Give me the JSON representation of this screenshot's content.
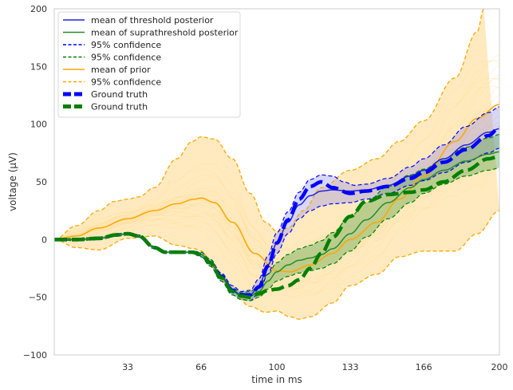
{
  "chart_data": {
    "type": "line",
    "xlabel": "time in ms",
    "ylabel": "voltage (μV)",
    "xlim": [
      0,
      200
    ],
    "ylim": [
      -100,
      200
    ],
    "xticks": [
      33,
      66,
      100,
      133,
      166,
      200
    ],
    "yticks": [
      -100,
      -50,
      0,
      50,
      100,
      150,
      200
    ],
    "grid": false,
    "legend_position": "top-left",
    "colors": {
      "threshold": "#2222dd",
      "suprathreshold": "#2a8a2a",
      "prior": "#ffa500",
      "prior_fill": "#ffd98a",
      "ground_truth_threshold": "#0000ff",
      "ground_truth_supra": "#008000"
    },
    "legend": [
      {
        "label": "mean of threshold posterior",
        "color": "#2222dd",
        "style": "solid",
        "width": 1.5
      },
      {
        "label": "mean of suprathreshold posterior",
        "color": "#2a8a2a",
        "style": "solid",
        "width": 1.5
      },
      {
        "label": "95% confidence",
        "color": "#0000ff",
        "style": "dashed",
        "width": 1.5
      },
      {
        "label": "95% confidence",
        "color": "#008000",
        "style": "dashed",
        "width": 1.5
      },
      {
        "label": "mean of prior",
        "color": "#ffa500",
        "style": "solid",
        "width": 1.5
      },
      {
        "label": "95% confidence",
        "color": "#ffa500",
        "style": "dashed",
        "width": 1.5
      },
      {
        "label": "Ground truth",
        "color": "#0000ff",
        "style": "dashed",
        "width": 5
      },
      {
        "label": "Ground truth",
        "color": "#008000",
        "style": "dashed",
        "width": 5
      }
    ],
    "series": [
      {
        "name": "mean of prior",
        "color": "#ffa500",
        "style": "solid",
        "width": 1.5,
        "x": [
          0,
          10,
          20,
          33,
          45,
          55,
          63,
          66,
          72,
          80,
          90,
          100,
          106,
          115,
          125,
          133,
          145,
          155,
          166,
          180,
          190,
          200
        ],
        "y": [
          0,
          3,
          10,
          18,
          25,
          31,
          35,
          36,
          32,
          15,
          -12,
          -27,
          -28,
          -22,
          -12,
          0,
          15,
          35,
          55,
          85,
          105,
          117
        ]
      },
      {
        "name": "prior 95% upper",
        "color": "#ffa500",
        "style": "dashed",
        "width": 1.3,
        "x": [
          0,
          10,
          20,
          27,
          33,
          38,
          45,
          55,
          62,
          66,
          72,
          80,
          88,
          95,
          100,
          105,
          112,
          120,
          133,
          145,
          155,
          166,
          180,
          190,
          193
        ],
        "y": [
          0,
          12,
          25,
          33,
          35,
          37,
          45,
          70,
          85,
          89,
          87,
          70,
          40,
          15,
          7,
          10,
          25,
          45,
          60,
          70,
          85,
          103,
          140,
          180,
          200
        ]
      },
      {
        "name": "prior 95% lower",
        "color": "#ffa500",
        "style": "dashed",
        "width": 1.3,
        "x": [
          0,
          10,
          20,
          33,
          45,
          55,
          63,
          66,
          72,
          80,
          88,
          95,
          100,
          106,
          110,
          115,
          125,
          133,
          145,
          155,
          166,
          180,
          190,
          200
        ],
        "y": [
          0,
          -7,
          -9,
          1,
          3,
          -5,
          -8,
          -10,
          -25,
          -45,
          -58,
          -63,
          -62,
          -67,
          -69,
          -67,
          -55,
          -40,
          -30,
          -15,
          -10,
          -10,
          5,
          25
        ]
      },
      {
        "name": "mean of threshold posterior",
        "color": "#2222dd",
        "style": "solid",
        "width": 1.5,
        "x": [
          0,
          10,
          20,
          28,
          33,
          38,
          45,
          50,
          55,
          62,
          66,
          70,
          75,
          80,
          84,
          88,
          92,
          96,
          100,
          105,
          110,
          115,
          120,
          125,
          133,
          140,
          150,
          160,
          166,
          175,
          185,
          195,
          200
        ],
        "y": [
          0,
          0,
          1,
          4,
          5,
          3,
          -7,
          -11,
          -11,
          -11,
          -13,
          -20,
          -32,
          -44,
          -48,
          -48,
          -40,
          -22,
          -3,
          15,
          30,
          38,
          42,
          43,
          42,
          43,
          47,
          55,
          60,
          70,
          82,
          93,
          96
        ]
      },
      {
        "name": "threshold 95% upper",
        "color": "#0000ff",
        "style": "dashed",
        "width": 1.2,
        "x": [
          0,
          10,
          20,
          28,
          33,
          38,
          45,
          50,
          55,
          62,
          66,
          70,
          75,
          80,
          84,
          88,
          92,
          96,
          100,
          105,
          110,
          115,
          120,
          125,
          130,
          135,
          140,
          150,
          160,
          166,
          175,
          185,
          195,
          200
        ],
        "y": [
          0,
          1,
          2,
          5,
          6,
          4,
          -6,
          -10,
          -10,
          -10,
          -11,
          -17,
          -29,
          -40,
          -45,
          -44,
          -34,
          -14,
          6,
          24,
          41,
          52,
          56,
          55,
          50,
          47,
          48,
          53,
          63,
          70,
          82,
          98,
          110,
          115
        ]
      },
      {
        "name": "threshold 95% lower",
        "color": "#0000ff",
        "style": "dashed",
        "width": 1.2,
        "x": [
          0,
          10,
          20,
          28,
          33,
          38,
          45,
          50,
          55,
          62,
          66,
          70,
          75,
          80,
          84,
          88,
          92,
          96,
          100,
          105,
          110,
          115,
          120,
          125,
          133,
          140,
          150,
          160,
          166,
          175,
          185,
          195,
          200
        ],
        "y": [
          0,
          -1,
          0,
          3,
          4,
          2,
          -8,
          -12,
          -12,
          -12,
          -15,
          -23,
          -36,
          -48,
          -52,
          -53,
          -46,
          -30,
          -12,
          5,
          18,
          25,
          29,
          31,
          32,
          35,
          40,
          47,
          51,
          58,
          67,
          75,
          79
        ]
      },
      {
        "name": "mean of suprathreshold posterior",
        "color": "#2a8a2a",
        "style": "solid",
        "width": 1.5,
        "x": [
          0,
          10,
          20,
          28,
          33,
          38,
          45,
          50,
          55,
          62,
          66,
          70,
          75,
          80,
          84,
          88,
          92,
          96,
          100,
          105,
          110,
          115,
          120,
          125,
          133,
          140,
          150,
          160,
          166,
          175,
          185,
          195,
          200
        ],
        "y": [
          0,
          0,
          1,
          4,
          5,
          3,
          -7,
          -11,
          -11,
          -11,
          -13,
          -20,
          -33,
          -45,
          -49,
          -49,
          -45,
          -36,
          -28,
          -22,
          -18,
          -16,
          -13,
          -8,
          5,
          17,
          32,
          45,
          52,
          60,
          68,
          74,
          76
        ]
      },
      {
        "name": "suprathreshold 95% upper",
        "color": "#008000",
        "style": "dashed",
        "width": 1.2,
        "x": [
          0,
          10,
          20,
          28,
          33,
          38,
          45,
          50,
          55,
          62,
          66,
          70,
          75,
          80,
          84,
          88,
          92,
          96,
          100,
          105,
          110,
          115,
          120,
          125,
          133,
          140,
          150,
          160,
          166,
          175,
          185,
          195,
          200
        ],
        "y": [
          0,
          1,
          2,
          5,
          6,
          4,
          -6,
          -10,
          -10,
          -10,
          -11,
          -17,
          -30,
          -42,
          -46,
          -45,
          -40,
          -30,
          -20,
          -13,
          -8,
          -5,
          -1,
          6,
          20,
          32,
          46,
          56,
          61,
          70,
          80,
          88,
          91
        ]
      },
      {
        "name": "suprathreshold 95% lower",
        "color": "#008000",
        "style": "dashed",
        "width": 1.2,
        "x": [
          0,
          10,
          20,
          28,
          33,
          38,
          45,
          50,
          55,
          62,
          66,
          70,
          75,
          80,
          84,
          88,
          92,
          96,
          100,
          105,
          110,
          115,
          120,
          125,
          133,
          140,
          150,
          160,
          166,
          175,
          185,
          195,
          200
        ],
        "y": [
          0,
          -1,
          0,
          3,
          4,
          2,
          -8,
          -12,
          -12,
          -12,
          -15,
          -23,
          -36,
          -48,
          -52,
          -53,
          -50,
          -43,
          -36,
          -32,
          -29,
          -27,
          -25,
          -21,
          -10,
          2,
          18,
          32,
          40,
          48,
          55,
          60,
          62
        ]
      },
      {
        "name": "Ground truth (threshold)",
        "color": "#0000ff",
        "style": "dashed",
        "width": 4.5,
        "x": [
          0,
          10,
          20,
          28,
          33,
          38,
          45,
          50,
          55,
          62,
          66,
          70,
          75,
          80,
          84,
          88,
          92,
          96,
          100,
          105,
          110,
          115,
          120,
          125,
          133,
          140,
          150,
          160,
          166,
          175,
          185,
          195,
          200
        ],
        "y": [
          0,
          0,
          1,
          4,
          5,
          3,
          -7,
          -11,
          -11,
          -11,
          -13,
          -20,
          -32,
          -44,
          -48,
          -48,
          -41,
          -23,
          -3,
          17,
          35,
          46,
          50,
          45,
          40,
          42,
          46,
          53,
          58,
          67,
          78,
          90,
          97
        ]
      },
      {
        "name": "Ground truth (suprathreshold)",
        "color": "#008000",
        "style": "dashed",
        "width": 4.5,
        "x": [
          0,
          10,
          20,
          28,
          33,
          38,
          45,
          50,
          55,
          62,
          66,
          70,
          75,
          80,
          84,
          88,
          92,
          96,
          100,
          105,
          110,
          115,
          120,
          125,
          133,
          140,
          150,
          160,
          166,
          175,
          185,
          195,
          200
        ],
        "y": [
          0,
          0,
          1,
          4,
          5,
          3,
          -7,
          -11,
          -11,
          -11,
          -13,
          -20,
          -33,
          -45,
          -49,
          -50,
          -47,
          -44,
          -43,
          -40,
          -35,
          -25,
          -12,
          2,
          20,
          33,
          39,
          41,
          43,
          50,
          60,
          70,
          72
        ]
      }
    ]
  }
}
